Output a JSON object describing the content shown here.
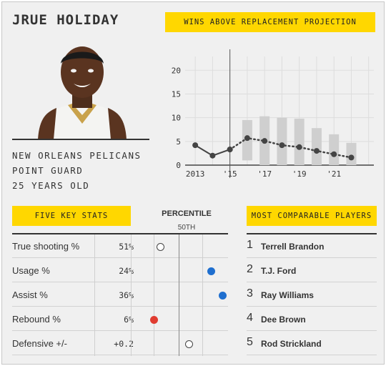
{
  "player": {
    "name": "JRUE HOLIDAY",
    "team": "NEW ORLEANS PELICANS",
    "position": "POINT GUARD",
    "age": "25 YEARS OLD"
  },
  "war_section": {
    "title": "WINS ABOVE REPLACEMENT PROJECTION"
  },
  "stats_section": {
    "title": "FIVE KEY STATS",
    "percentile_label": "PERCENTILE",
    "median_label": "50TH",
    "rows": [
      {
        "label": "True shooting %",
        "value": "51%",
        "percentile": 0.1,
        "color": "#ffffff"
      },
      {
        "label": "Usage %",
        "value": "24%",
        "percentile": 0.82,
        "color": "#1f6fcf"
      },
      {
        "label": "Assist %",
        "value": "36%",
        "percentile": 0.98,
        "color": "#1f6fcf"
      },
      {
        "label": "Rebound %",
        "value": "6%",
        "percentile": 0.01,
        "color": "#e03c31"
      },
      {
        "label": "Defensive +/-",
        "value": "+0.2",
        "percentile": 0.5,
        "color": "#ffffff"
      }
    ]
  },
  "comparables": {
    "title": "MOST COMPARABLE PLAYERS",
    "players": [
      {
        "rank": "1",
        "name": "Terrell Brandon"
      },
      {
        "rank": "2",
        "name": "T.J. Ford"
      },
      {
        "rank": "3",
        "name": "Ray Williams"
      },
      {
        "rank": "4",
        "name": "Dee Brown"
      },
      {
        "rank": "5",
        "name": "Rod Strickland"
      }
    ]
  },
  "colors": {
    "accent": "#ffd700",
    "above_avg": "#1f6fcf",
    "below_avg": "#e03c31"
  },
  "chart_data": {
    "type": "line",
    "title": "WINS ABOVE REPLACEMENT PROJECTION",
    "xlabel": "",
    "ylabel": "",
    "x_tick_labels": [
      "2013",
      "'15",
      "'17",
      "'19",
      "'21"
    ],
    "x_tick_values": [
      2013,
      2015,
      2017,
      2019,
      2021
    ],
    "y_tick_labels": [
      "0",
      "5",
      "10",
      "15",
      "20"
    ],
    "y_ticks": [
      0,
      5,
      10,
      15,
      20
    ],
    "ylim": [
      0,
      22
    ],
    "xlim": [
      2012.5,
      2023.3
    ],
    "current_season": 2015,
    "series": [
      {
        "x": [
          2013,
          2014,
          2015
        ],
        "y": [
          4.2,
          2.0,
          3.3
        ],
        "style": "solid"
      },
      {
        "x": [
          2015,
          2016,
          2017,
          2018,
          2019,
          2020,
          2021,
          2022
        ],
        "y": [
          3.3,
          5.7,
          5.1,
          4.2,
          3.8,
          3.0,
          2.3,
          1.6
        ],
        "style": "dotted"
      }
    ],
    "projection_ranges": [
      {
        "x": 2016,
        "low": 1.0,
        "high": 9.5
      },
      {
        "x": 2017,
        "low": 0.0,
        "high": 10.3
      },
      {
        "x": 2018,
        "low": 0.0,
        "high": 10.0
      },
      {
        "x": 2019,
        "low": 0.0,
        "high": 9.8
      },
      {
        "x": 2020,
        "low": 0.0,
        "high": 7.8
      },
      {
        "x": 2021,
        "low": 0.0,
        "high": 6.5
      },
      {
        "x": 2022,
        "low": 0.0,
        "high": 4.7
      }
    ],
    "grid": true
  }
}
